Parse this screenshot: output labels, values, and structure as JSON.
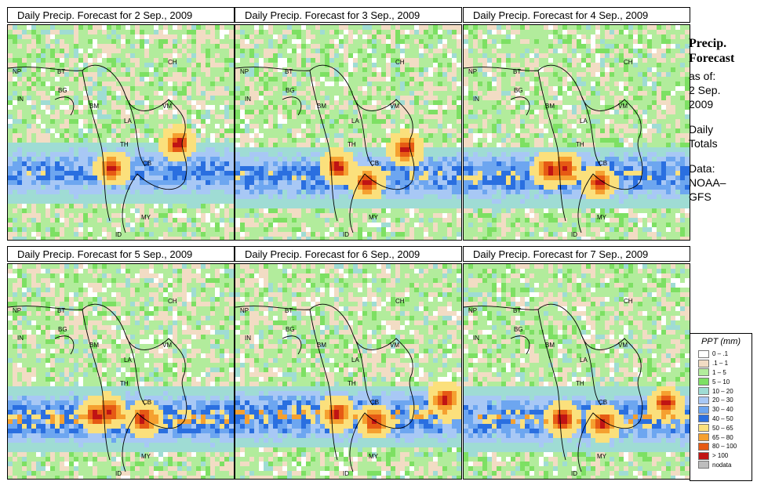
{
  "panels": [
    {
      "title": "Daily Precip. Forecast for  2 Sep., 2009"
    },
    {
      "title": "Daily Precip. Forecast for  3 Sep., 2009"
    },
    {
      "title": "Daily Precip. Forecast for  4 Sep., 2009"
    },
    {
      "title": "Daily Precip. Forecast for  5 Sep., 2009"
    },
    {
      "title": "Daily Precip. Forecast for  6 Sep., 2009"
    },
    {
      "title": "Daily Precip. Forecast for  7 Sep., 2009"
    }
  ],
  "map_labels": [
    "NP",
    "BT",
    "IN",
    "BG",
    "BM",
    "CH",
    "VM",
    "LA",
    "TH",
    "CB",
    "MY",
    "ID"
  ],
  "sidebar": {
    "heading_1": "Precip.",
    "heading_2": "Forecast",
    "as_of_1": "as of:",
    "as_of_2": "2 Sep.",
    "as_of_3": "2009",
    "totals_1": "Daily",
    "totals_2": "Totals",
    "data_1": "Data:",
    "data_2": "NOAA–",
    "data_3": "GFS"
  },
  "legend": {
    "title": "PPT (mm)",
    "items": [
      {
        "label": "0 – .1",
        "color": "#ffffff"
      },
      {
        "label": ".1 – 1",
        "color": "#f2dcc4"
      },
      {
        "label": "1 – 5",
        "color": "#b2ec9c"
      },
      {
        "label": "5 – 10",
        "color": "#7de063"
      },
      {
        "label": "10 – 20",
        "color": "#9fdcd4"
      },
      {
        "label": "20 – 30",
        "color": "#a8c8f5"
      },
      {
        "label": "30 – 40",
        "color": "#6da6f0"
      },
      {
        "label": "40 – 50",
        "color": "#2a6fe0"
      },
      {
        "label": "50 – 65",
        "color": "#fbe07c"
      },
      {
        "label": "65 – 80",
        "color": "#f5a030"
      },
      {
        "label": "80 – 100",
        "color": "#e65a14"
      },
      {
        "label": "> 100",
        "color": "#c01414"
      },
      {
        "label": "nodata",
        "color": "#bdbdbd"
      }
    ]
  }
}
